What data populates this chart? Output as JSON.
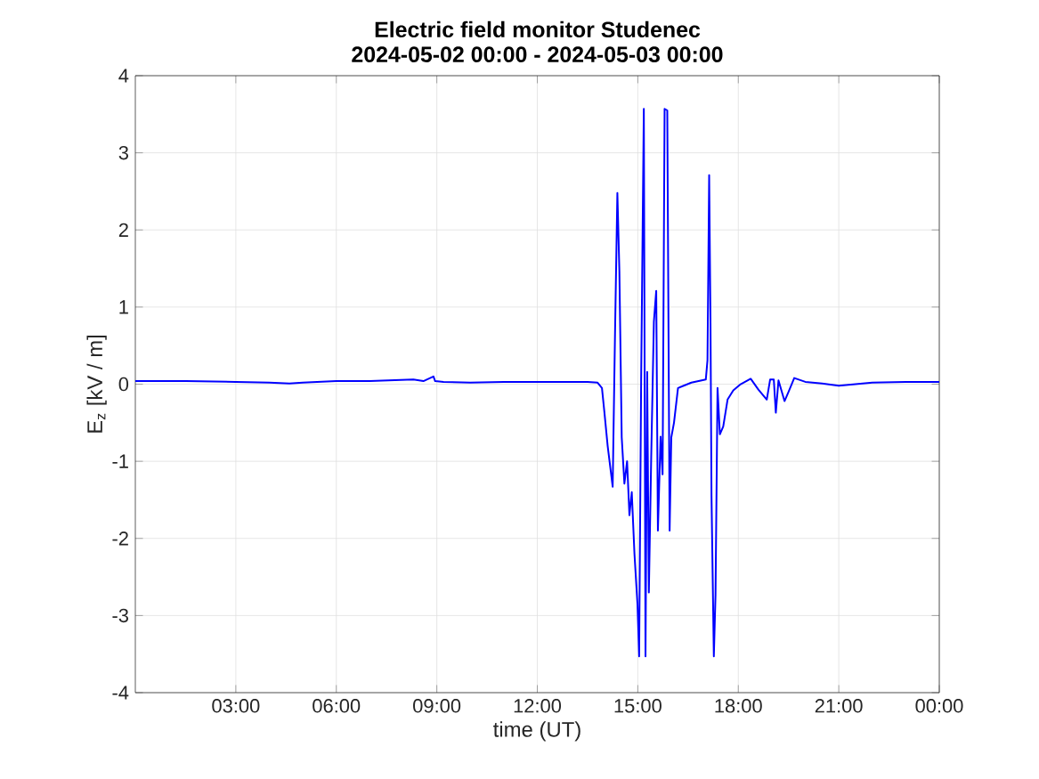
{
  "chart_data": {
    "type": "line",
    "title": "Electric field monitor Studenec",
    "subtitle": "2024-05-02 00:00 - 2024-05-03 00:00",
    "xlabel": "time (UT)",
    "ylabel": "E$_{z}$ [kV / m]",
    "x": [
      0,
      1.5,
      3,
      4,
      4.6,
      5,
      6,
      7,
      8.3,
      8.6,
      8.9,
      8.95,
      9.2,
      10,
      11,
      12,
      13,
      13.5,
      13.8,
      13.93,
      14.0,
      14.1,
      14.25,
      14.32,
      14.39,
      14.45,
      14.52,
      14.6,
      14.68,
      14.75,
      14.82,
      14.9,
      14.99,
      15.04,
      15.1,
      15.18,
      15.23,
      15.28,
      15.33,
      15.4,
      15.48,
      15.55,
      15.6,
      15.68,
      15.74,
      15.8,
      15.88,
      15.95,
      16.0,
      16.08,
      16.2,
      16.6,
      17.03,
      17.08,
      17.13,
      17.17,
      17.2,
      17.27,
      17.32,
      17.38,
      17.45,
      17.55,
      17.68,
      17.85,
      18.07,
      18.37,
      18.6,
      18.85,
      18.95,
      19.06,
      19.12,
      19.2,
      19.38,
      19.5,
      19.67,
      20.0,
      20.5,
      21.0,
      22.0,
      23.0,
      24.0
    ],
    "values": [
      0.04,
      0.04,
      0.03,
      0.02,
      0.01,
      0.02,
      0.04,
      0.04,
      0.06,
      0.04,
      0.1,
      0.04,
      0.03,
      0.02,
      0.03,
      0.03,
      0.03,
      0.03,
      0.02,
      -0.05,
      -0.35,
      -0.8,
      -1.33,
      0.66,
      2.48,
      1.47,
      -0.69,
      -1.29,
      -1.0,
      -1.7,
      -1.4,
      -2.2,
      -2.85,
      -3.53,
      0.06,
      3.57,
      -3.53,
      0.16,
      -2.7,
      -0.95,
      0.81,
      1.21,
      -1.9,
      -0.68,
      -1.17,
      3.57,
      3.55,
      -1.9,
      -0.69,
      -0.5,
      -0.05,
      0.02,
      0.06,
      0.31,
      2.71,
      0.8,
      -1.45,
      -3.53,
      -2.73,
      -0.05,
      -0.65,
      -0.55,
      -0.2,
      -0.08,
      0.0,
      0.07,
      -0.07,
      -0.2,
      0.06,
      0.06,
      -0.37,
      0.05,
      -0.22,
      -0.1,
      0.08,
      0.03,
      0.01,
      -0.02,
      0.02,
      0.03,
      0.03
    ],
    "color": "#0000ff",
    "marker": "none",
    "line_style": "solid",
    "grid": true,
    "xlim": [
      0,
      24
    ],
    "xticks": [
      {
        "value": 3,
        "label": "03:00"
      },
      {
        "value": 6,
        "label": "06:00"
      },
      {
        "value": 9,
        "label": "09:00"
      },
      {
        "value": 12,
        "label": "12:00"
      },
      {
        "value": 15,
        "label": "15:00"
      },
      {
        "value": 18,
        "label": "18:00"
      },
      {
        "value": 21,
        "label": "21:00"
      },
      {
        "value": 24,
        "label": "00:00"
      }
    ],
    "ylim": [
      -4,
      4
    ],
    "yticks": [
      -4,
      -3,
      -2,
      -1,
      0,
      1,
      2,
      3,
      4
    ]
  }
}
